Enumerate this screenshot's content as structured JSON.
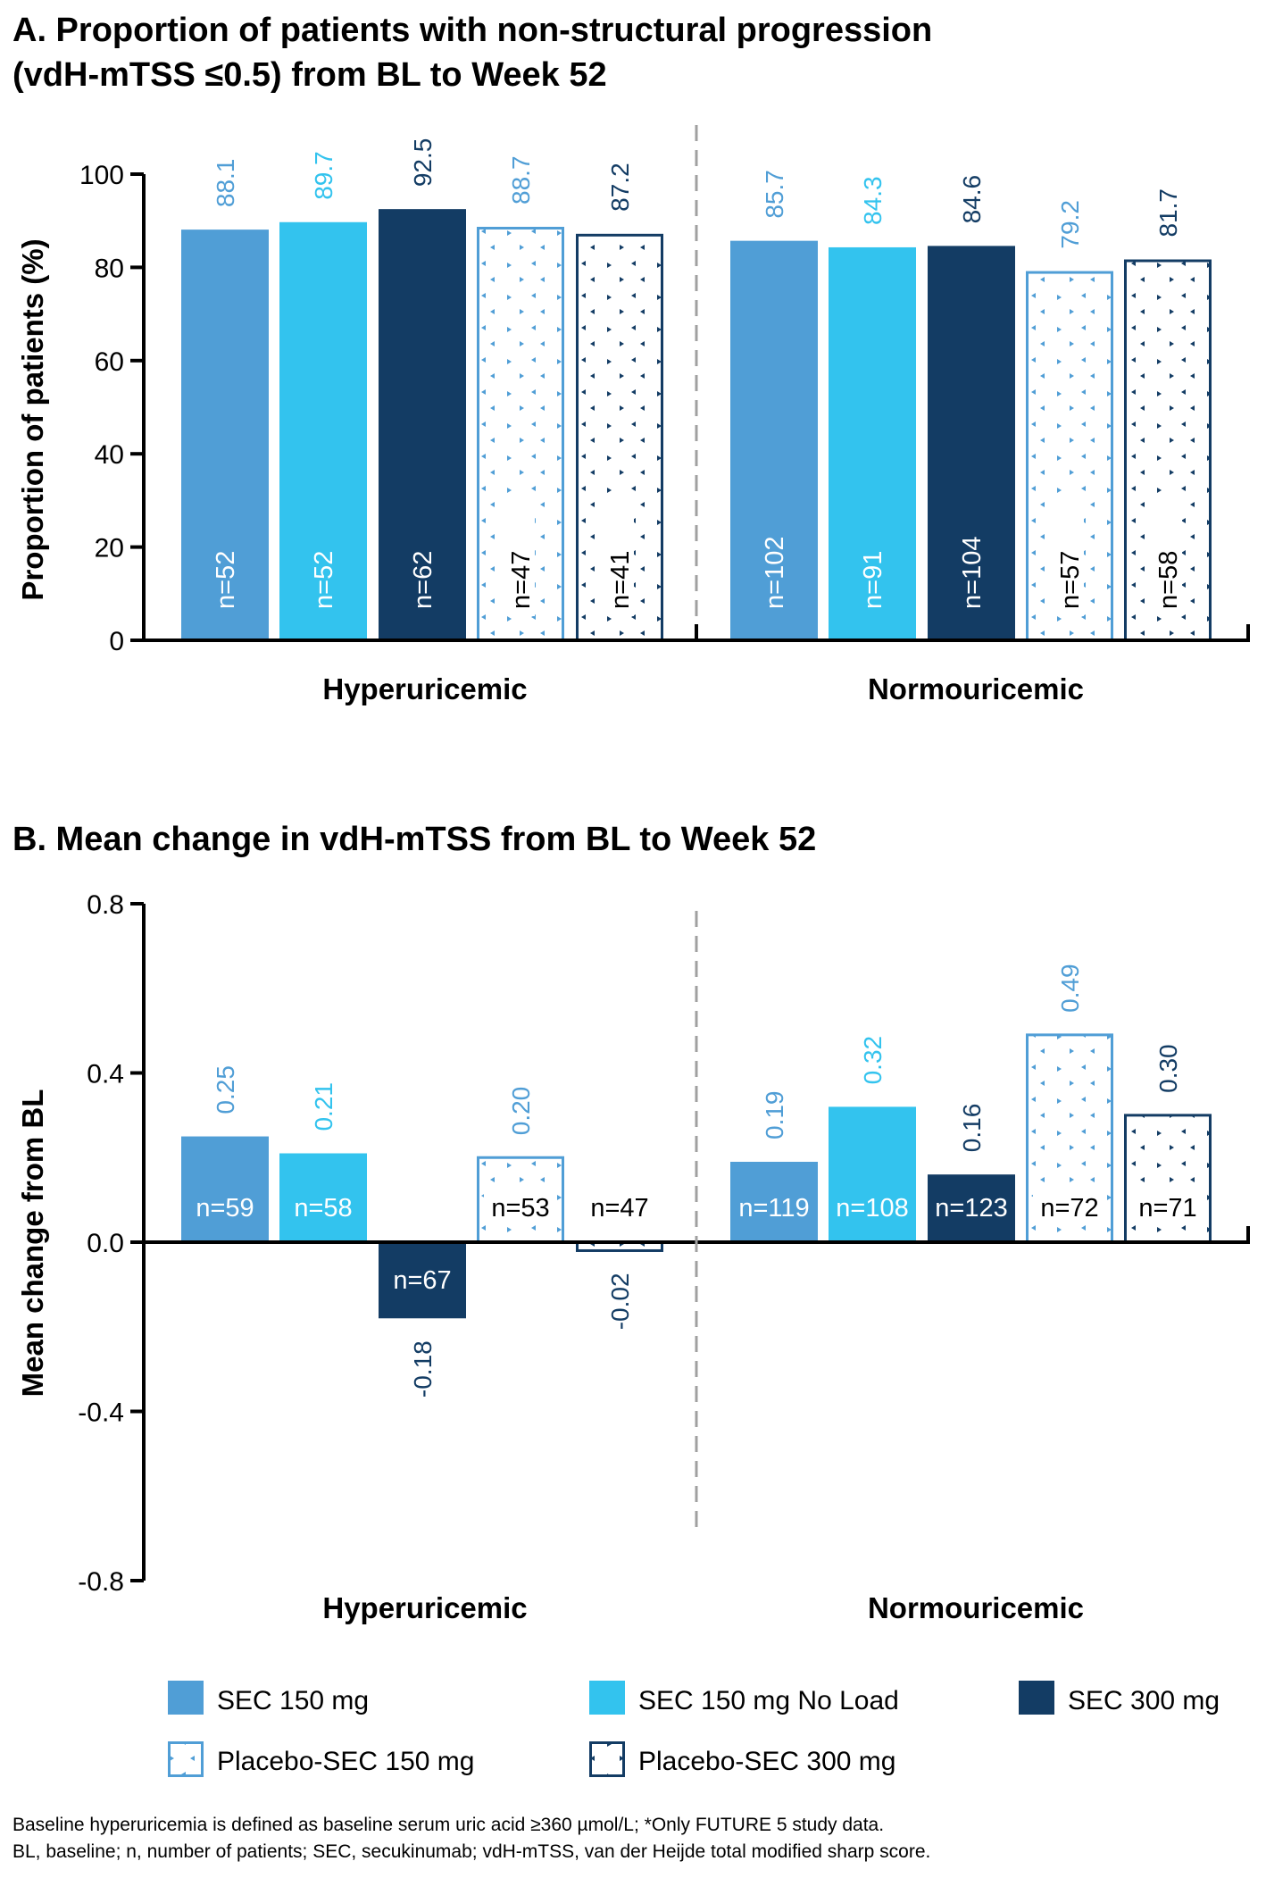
{
  "colors": {
    "sec150": "#509ED6",
    "sec150_noload": "#33C3EE",
    "sec300": "#133C64",
    "pbo150": "#509ED6",
    "pbo300": "#133C64",
    "axis": "#000000",
    "divider": "#A0A0A0"
  },
  "legend": [
    {
      "key": "sec150",
      "label": "SEC 150 mg",
      "style": "solid"
    },
    {
      "key": "sec150_noload",
      "label": "SEC 150 mg No Load",
      "style": "solid"
    },
    {
      "key": "sec300",
      "label": "SEC 300 mg",
      "style": "solid"
    },
    {
      "key": "pbo150",
      "label": "Placebo-SEC 150 mg",
      "style": "pattern"
    },
    {
      "key": "pbo300",
      "label": "Placebo-SEC 300 mg",
      "style": "pattern"
    }
  ],
  "footnotes": [
    "Baseline hyperuricemia is defined as baseline serum uric acid ≥360 µmol/L; *Only FUTURE 5 study data.",
    "BL, baseline; n, number of patients; SEC, secukinumab; vdH-mTSS, van der Heijde total modified sharp score."
  ],
  "chart_data": [
    {
      "id": "A",
      "type": "bar",
      "title": [
        "A. Proportion of patients with non-structural progression",
        "(vdH-mTSS ≤0.5) from BL to Week 52"
      ],
      "xlabel": "",
      "ylabel": "Proportion of patients (%)",
      "ylim": [
        0,
        100
      ],
      "yticks": [
        0,
        20,
        40,
        60,
        80,
        100
      ],
      "ytick_labels": [
        "0",
        "20",
        "40",
        "60",
        "80",
        "100"
      ],
      "grid": false,
      "categories": [
        "Hyperuricemic",
        "Normouricemic"
      ],
      "series": [
        {
          "key": "sec150",
          "name": "SEC 150 mg",
          "values": [
            88.1,
            85.7
          ],
          "labels": [
            "88.1",
            "85.7"
          ],
          "n": [
            "n=52",
            "n=102"
          ]
        },
        {
          "key": "sec150_noload",
          "name": "SEC 150 mg No Load",
          "values": [
            89.7,
            84.3
          ],
          "labels": [
            "89.7",
            "84.3"
          ],
          "n": [
            "n=52",
            "n=91"
          ]
        },
        {
          "key": "sec300",
          "name": "SEC 300 mg",
          "values": [
            92.5,
            84.6
          ],
          "labels": [
            "92.5",
            "84.6"
          ],
          "n": [
            "n=62",
            "n=104"
          ]
        },
        {
          "key": "pbo150",
          "name": "Placebo-SEC 150 mg",
          "values": [
            88.7,
            79.2
          ],
          "labels": [
            "88.7",
            "79.2"
          ],
          "n": [
            "n=47",
            "n=57"
          ]
        },
        {
          "key": "pbo300",
          "name": "Placebo-SEC 300 mg",
          "values": [
            87.2,
            81.7
          ],
          "labels": [
            "87.2",
            "81.7"
          ],
          "n": [
            "n=41",
            "n=58"
          ]
        }
      ]
    },
    {
      "id": "B",
      "type": "bar",
      "title": [
        "B. Mean change in vdH-mTSS from BL to Week 52"
      ],
      "xlabel": "",
      "ylabel": "Mean change from BL",
      "ylim": [
        -0.8,
        0.8
      ],
      "yticks": [
        -0.8,
        -0.4,
        0.0,
        0.4,
        0.8
      ],
      "ytick_labels": [
        "-0.8",
        "-0.4",
        "0.0",
        "0.4",
        "0.8"
      ],
      "grid": false,
      "categories": [
        "Hyperuricemic",
        "Normouricemic"
      ],
      "series": [
        {
          "key": "sec150",
          "name": "SEC 150 mg",
          "values": [
            0.25,
            0.19
          ],
          "labels": [
            "0.25",
            "0.19"
          ],
          "n": [
            "n=59",
            "n=119"
          ]
        },
        {
          "key": "sec150_noload",
          "name": "SEC 150 mg No Load",
          "values": [
            0.21,
            0.32
          ],
          "labels": [
            "0.21",
            "0.32"
          ],
          "n": [
            "n=58",
            "n=108"
          ]
        },
        {
          "key": "sec300",
          "name": "SEC 300 mg",
          "values": [
            -0.18,
            0.16
          ],
          "labels": [
            "-0.18",
            "0.16"
          ],
          "n": [
            "n=67",
            "n=123"
          ]
        },
        {
          "key": "pbo150",
          "name": "Placebo-SEC 150 mg",
          "values": [
            0.2,
            0.49
          ],
          "labels": [
            "0.20",
            "0.49"
          ],
          "n": [
            "n=53",
            "n=72"
          ]
        },
        {
          "key": "pbo300",
          "name": "Placebo-SEC 300 mg",
          "values": [
            -0.02,
            0.3
          ],
          "labels": [
            "-0.02",
            "0.30"
          ],
          "n": [
            "n=47",
            "n=71"
          ]
        }
      ]
    }
  ]
}
